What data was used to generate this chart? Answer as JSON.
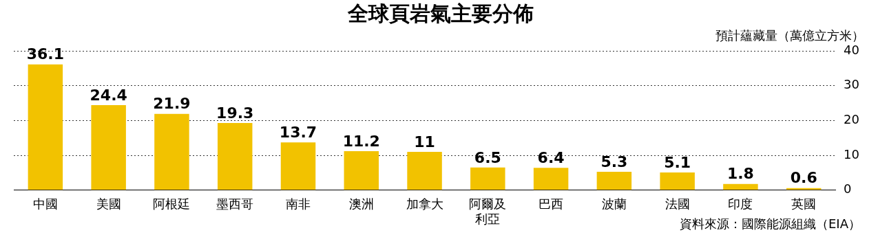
{
  "chart_data": {
    "type": "bar",
    "title": "全球頁岩氣主要分佈",
    "ylabel": "預計蘊藏量（萬億立方米）",
    "categories": [
      "中國",
      "美國",
      "阿根廷",
      "墨西哥",
      "南非",
      "澳洲",
      "加拿大",
      "阿爾及利亞",
      "巴西",
      "波蘭",
      "法國",
      "印度",
      "英國"
    ],
    "values": [
      36.1,
      24.4,
      21.9,
      19.3,
      13.7,
      11.2,
      11,
      6.5,
      6.4,
      5.3,
      5.1,
      1.8,
      0.6
    ],
    "color": "#f2c200",
    "ylim": [
      0,
      40
    ],
    "yticks": [
      0,
      10,
      20,
      30,
      40
    ],
    "grid": "y",
    "data_labels": true,
    "legend": false,
    "annotations": [
      "資料來源：國際能源組織（EIA）"
    ]
  }
}
